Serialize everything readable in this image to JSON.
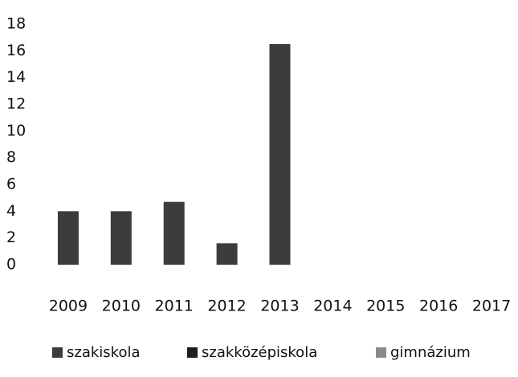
{
  "chart_data": {
    "type": "bar",
    "stacked": true,
    "categories": [
      "2009",
      "2010",
      "2011",
      "2012",
      "2013",
      "2014",
      "2015",
      "2016",
      "2017"
    ],
    "series": [
      {
        "name": "szakiskola",
        "color": "#3c3c3c",
        "values": [
          4,
          4,
          4.7,
          1.6,
          16.5,
          null,
          null,
          null,
          null
        ]
      },
      {
        "name": "szakközépiskola",
        "color": "#1e1e1e",
        "values": [
          null,
          null,
          null,
          null,
          null,
          null,
          null,
          null,
          null
        ]
      },
      {
        "name": "gimnázium",
        "color": "#8a8a8a",
        "values": [
          null,
          null,
          null,
          null,
          null,
          null,
          null,
          null,
          null
        ]
      }
    ],
    "ylim": [
      0,
      18
    ],
    "yticks": [
      0,
      2,
      4,
      6,
      8,
      10,
      12,
      14,
      16,
      18
    ],
    "grid": false,
    "legend": "bottom"
  }
}
